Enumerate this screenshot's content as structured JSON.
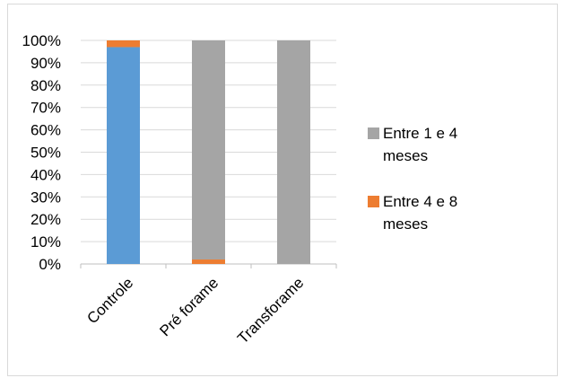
{
  "chart_data": {
    "type": "bar",
    "stacked": true,
    "normalized": true,
    "categories": [
      "Controle",
      "Pré forame",
      "Transforame"
    ],
    "series": [
      {
        "values": [
          97,
          0,
          0
        ],
        "color": "#5b9bd5"
      },
      {
        "name": "Entre 4 e 8 meses",
        "values": [
          3,
          2,
          0
        ],
        "color": "#ed7d31"
      },
      {
        "name": "Entre 1 e 4 meses",
        "values": [
          0,
          98,
          100
        ],
        "color": "#a5a5a5"
      }
    ],
    "ylim": [
      0,
      100
    ],
    "yticks": [
      "0%",
      "10%",
      "20%",
      "30%",
      "40%",
      "50%",
      "60%",
      "70%",
      "80%",
      "90%",
      "100%"
    ],
    "grid": true,
    "legend": {
      "placement": "right",
      "entries": [
        {
          "series": 2,
          "lines": [
            "Entre 1 e 4",
            "meses"
          ]
        },
        {
          "series": 1,
          "lines": [
            "Entre 4 e 8",
            "meses"
          ]
        }
      ]
    },
    "title": "",
    "xlabel": "",
    "ylabel": ""
  }
}
